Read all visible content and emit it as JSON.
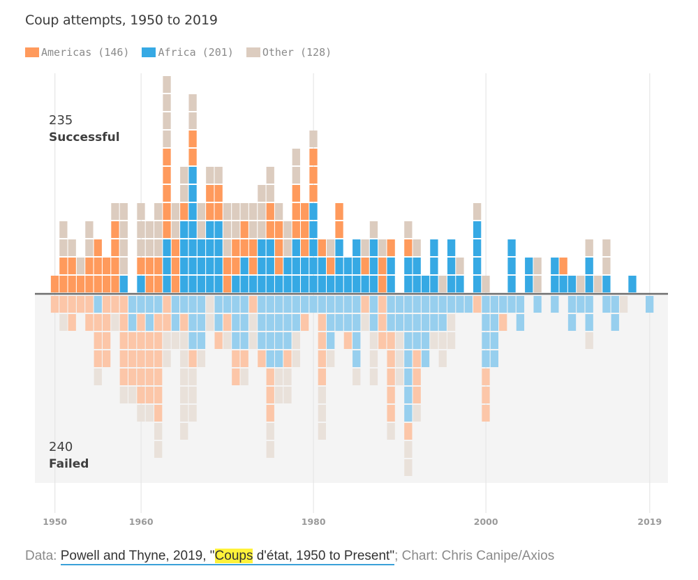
{
  "title": "Coup attempts, 1950 to 2019",
  "legend": [
    {
      "key": "A",
      "label": "Americas (146)",
      "color": "#ff9a5c",
      "light_color": "#fcc6a8"
    },
    {
      "key": "F",
      "label": "Africa (201)",
      "color": "#36a9e4",
      "light_color": "#97cfee"
    },
    {
      "key": "O",
      "label": "Other (128)",
      "color": "#dcccbf",
      "light_color": "#e9e1da"
    }
  ],
  "annotations": {
    "successful_count": "235",
    "successful_label": "Successful",
    "failed_count": "240",
    "failed_label": "Failed"
  },
  "footer": {
    "prefix": "Data: ",
    "link_pre": "Powell and Thyne, 2019, \"",
    "link_highlight": "Coups",
    "link_post": " d'état, 1950 to Present\"",
    "suffix": "; Chart: Chris Canipe/Axios"
  },
  "chart_data": {
    "type": "bar",
    "title": "Coup attempts, 1950 to 2019",
    "xlabel": "",
    "ylabel": "",
    "x_ticks": [
      1950,
      1960,
      1980,
      2000,
      2019
    ],
    "x_range": [
      1950,
      2019
    ],
    "grid": "vertical lines at tick years",
    "legend_position": "top-left",
    "encoding": "Each cell is one coup attempt; stacks read from the baseline outward. A=Americas, F=Africa, O=Other. Successful stacks rise above the baseline, failed stacks hang below.",
    "years": [
      1950,
      1951,
      1952,
      1953,
      1954,
      1955,
      1956,
      1957,
      1958,
      1959,
      1960,
      1961,
      1962,
      1963,
      1964,
      1965,
      1966,
      1967,
      1968,
      1969,
      1970,
      1971,
      1972,
      1973,
      1974,
      1975,
      1976,
      1977,
      1978,
      1979,
      1980,
      1981,
      1982,
      1983,
      1984,
      1985,
      1986,
      1987,
      1988,
      1989,
      1990,
      1991,
      1992,
      1993,
      1994,
      1995,
      1996,
      1997,
      1998,
      1999,
      2000,
      2001,
      2002,
      2003,
      2004,
      2005,
      2006,
      2007,
      2008,
      2009,
      2010,
      2011,
      2012,
      2013,
      2014,
      2015,
      2016,
      2017,
      2018,
      2019
    ],
    "successful": [
      "A",
      "AAOO",
      "AAO",
      "AO",
      "AAOO",
      "AAA",
      "AA",
      "AAAAO",
      "FOOOO",
      "",
      "FAOOO",
      "AAOO",
      "AAOOO",
      "FFFAAAAAOOOO",
      "AAAOO",
      "FFFFAOO",
      "FFFFFFFAAOO",
      "FFFOO",
      "FFFFAAO",
      "FFFFAAO",
      "AAOOO",
      "FAAOO",
      "FFAAO",
      "FAAOO",
      "FFFOOO",
      "FFFAAOO",
      "FAAAO",
      "FFOO",
      "FFFAAAOO",
      "FFAAA",
      "FFFFFAAAO",
      "FFA",
      "FAO",
      "FFFAA",
      "FF",
      "FFF",
      "FAO",
      "FFFO",
      "AAO",
      "FFA",
      "",
      "FFAO",
      "FFO",
      "F",
      "FFF",
      "O",
      "FFF",
      "FO",
      "",
      "FFFFO",
      "O",
      "",
      "",
      "FFF",
      "",
      "FF",
      "OO",
      "",
      "FF",
      "FA",
      "F",
      "O",
      "FFO",
      "O",
      "FOO",
      "",
      "",
      "F",
      "",
      ""
    ],
    "failed": [
      "A",
      "AO",
      "AA",
      "A",
      "AA",
      "FAAAO",
      "AAAA",
      "AO",
      "AAAAAO",
      "FFAAAO",
      "FAAAAAO",
      "FFAAAAO",
      "FAAAAAAOO",
      "AAOO",
      "FFO",
      "FAOOOOOO",
      "FFFAOOO",
      "FFFO",
      "OO",
      "FFA",
      "FAO",
      "FFFAA",
      "FFFAO",
      "AOO",
      "FFFA",
      "FFFFAAAOO",
      "FFFFOO",
      "FFFAOO",
      "FFOO",
      "FA",
      "F",
      "FAAAAOOO",
      "FFFO",
      "FF",
      "FFA",
      "FFFFO",
      "AO",
      "FFOOO",
      "AAA",
      "FFAAAAAO",
      "FFOOO",
      "FFFFFFFAOO",
      "FFFAAAO",
      "FFFF",
      "FFO",
      "FFOO",
      "FOO",
      "F",
      "F",
      "A",
      "FFFFAAA",
      "FFFF",
      "FA",
      "F",
      "FF",
      "",
      "F",
      "",
      "F",
      "",
      "FF",
      "F",
      "FFO",
      "",
      "F",
      "FF",
      "O",
      "",
      "",
      "F"
    ],
    "totals": {
      "successful": 235,
      "failed": 240,
      "americas": 146,
      "africa": 201,
      "other": 128
    }
  }
}
